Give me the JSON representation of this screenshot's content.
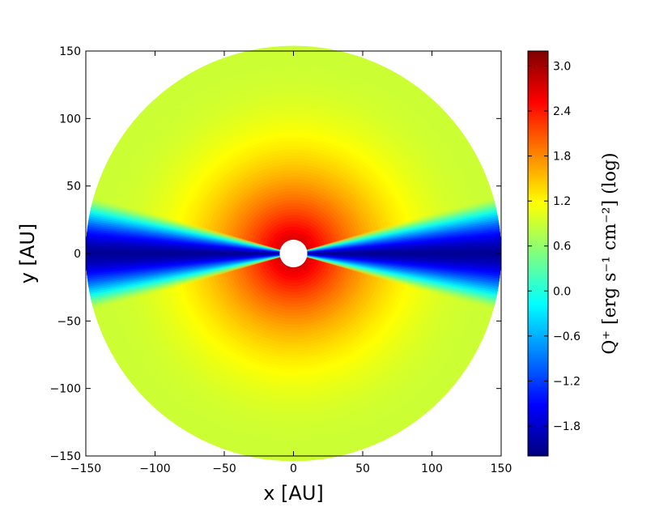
{
  "chart_data": {
    "type": "heatmap",
    "title": "",
    "xlabel": "x [AU]",
    "ylabel": "y [AU]",
    "xlim": [
      -150,
      150
    ],
    "ylim": [
      -150,
      150
    ],
    "x_ticks": [
      -150,
      -100,
      -50,
      0,
      50,
      100,
      150
    ],
    "x_tick_labels": [
      "−150",
      "−100",
      "−50",
      "0",
      "50",
      "100",
      "150"
    ],
    "y_ticks": [
      150,
      100,
      50,
      0,
      -50,
      -100,
      -150
    ],
    "y_tick_labels": [
      "150",
      "100",
      "50",
      "0",
      "−50",
      "−100",
      "−150"
    ],
    "grid": false,
    "colorbar": {
      "label": "Q⁺ [erg s⁻¹ cm⁻²] (log)",
      "range": [
        -2.2,
        3.2
      ],
      "ticks": [
        3.0,
        2.4,
        1.8,
        1.2,
        0.6,
        0.0,
        -0.6,
        -1.2,
        -1.8
      ],
      "tick_labels": [
        "3.0",
        "2.4",
        "1.8",
        "1.2",
        "0.6",
        "0.0",
        "−0.6",
        "−1.2",
        "−1.8"
      ],
      "colormap": "jet"
    },
    "field": {
      "description_values": {
        "outer_radius_au": 150,
        "inner_hole_radius_au": 10,
        "peak_log_value": 3.1,
        "outer_edge_log_value": 0.9,
        "midplane_shadow_min_log_value": -2.1,
        "shadow_half_opening_angle_deg": 16
      }
    }
  }
}
